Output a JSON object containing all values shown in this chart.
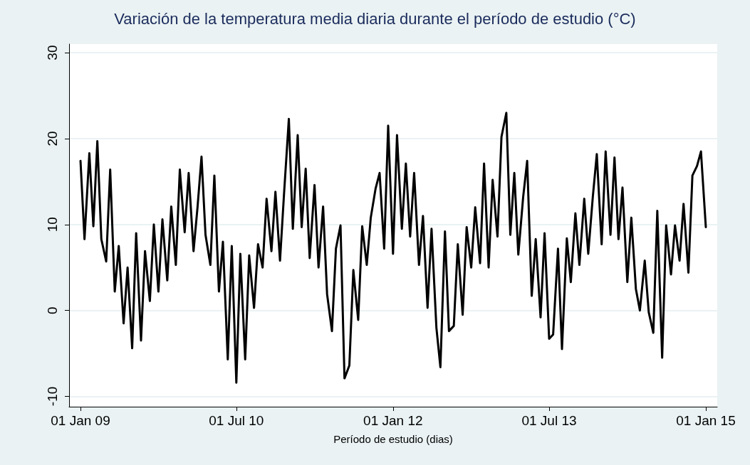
{
  "chart_data": {
    "type": "line",
    "title": "Variación de la temperatura media diaria durante el período de estudio (°C)",
    "xlabel": "Período de estudio (dias)",
    "x": [
      "2009-01-01",
      "2009-01-15",
      "2009-02-01",
      "2009-02-15",
      "2009-03-01",
      "2009-03-15",
      "2009-04-01",
      "2009-04-15",
      "2009-05-01",
      "2009-05-15",
      "2009-06-01",
      "2009-06-15",
      "2009-07-01",
      "2009-07-15",
      "2009-08-01",
      "2009-08-15",
      "2009-09-01",
      "2009-09-15",
      "2009-10-01",
      "2009-10-15",
      "2009-11-01",
      "2009-11-15",
      "2009-12-01",
      "2009-12-15",
      "2010-01-01",
      "2010-01-15",
      "2010-02-01",
      "2010-02-15",
      "2010-03-01",
      "2010-03-15",
      "2010-04-01",
      "2010-04-15",
      "2010-05-01",
      "2010-05-15",
      "2010-06-01",
      "2010-06-15",
      "2010-07-01",
      "2010-07-15",
      "2010-08-01",
      "2010-08-15",
      "2010-09-01",
      "2010-09-15",
      "2010-10-01",
      "2010-10-15",
      "2010-11-01",
      "2010-11-15",
      "2010-12-01",
      "2010-12-15",
      "2011-01-01",
      "2011-01-15",
      "2011-02-01",
      "2011-02-15",
      "2011-03-01",
      "2011-03-15",
      "2011-04-01",
      "2011-04-15",
      "2011-05-01",
      "2011-05-15",
      "2011-06-01",
      "2011-06-15",
      "2011-07-01",
      "2011-07-15",
      "2011-08-01",
      "2011-08-15",
      "2011-09-01",
      "2011-09-15",
      "2011-10-01",
      "2011-10-15",
      "2011-11-01",
      "2011-11-15",
      "2011-12-01",
      "2011-12-15",
      "2012-01-01",
      "2012-01-15",
      "2012-02-01",
      "2012-02-15",
      "2012-03-01",
      "2012-03-15",
      "2012-04-01",
      "2012-04-15",
      "2012-05-01",
      "2012-05-15",
      "2012-06-01",
      "2012-06-15",
      "2012-07-01",
      "2012-07-15",
      "2012-08-01",
      "2012-08-15",
      "2012-09-01",
      "2012-09-15",
      "2012-10-01",
      "2012-10-15",
      "2012-11-01",
      "2012-11-15",
      "2012-12-01",
      "2012-12-15",
      "2013-01-01",
      "2013-01-15",
      "2013-02-01",
      "2013-02-15",
      "2013-03-01",
      "2013-03-15",
      "2013-04-01",
      "2013-04-15",
      "2013-05-01",
      "2013-05-15",
      "2013-06-01",
      "2013-06-15",
      "2013-07-01",
      "2013-07-15",
      "2013-08-01",
      "2013-08-15",
      "2013-09-01",
      "2013-09-15",
      "2013-10-01",
      "2013-10-15",
      "2013-11-01",
      "2013-11-15",
      "2013-12-01",
      "2013-12-15",
      "2014-01-01",
      "2014-01-15",
      "2014-02-01",
      "2014-02-15",
      "2014-03-01",
      "2014-03-15",
      "2014-04-01",
      "2014-04-15",
      "2014-05-01",
      "2014-05-15",
      "2014-06-01",
      "2014-06-15",
      "2014-07-01",
      "2014-07-15",
      "2014-08-01",
      "2014-08-15",
      "2014-09-01",
      "2014-09-15",
      "2014-10-01",
      "2014-10-15",
      "2014-11-01",
      "2014-11-15",
      "2014-12-01",
      "2014-12-15",
      "2015-01-01"
    ],
    "series": [
      {
        "color": "#000000",
        "values": [
          17.4,
          8.3,
          18.3,
          9.8,
          19.7,
          8.3,
          5.7,
          16.4,
          2.2,
          7.5,
          -1.5,
          5.0,
          -4.4,
          9.0,
          -3.5,
          6.9,
          1.1,
          10,
          2.2,
          10.6,
          3.5,
          12.1,
          5.3,
          16.4,
          9.1,
          16,
          6.9,
          12,
          17.9,
          8.8,
          5.3,
          15.7,
          2.2,
          8,
          -5.7,
          7.5,
          -8.4,
          6.6,
          -5.7,
          6.4,
          0.3,
          7.7,
          5,
          13,
          6.9,
          13.8,
          5.8,
          13.5,
          22.3,
          9.5,
          20.4,
          9.7,
          16.5,
          6.1,
          14.6,
          5,
          12.1,
          1.9,
          -2.4,
          7.2,
          9.9,
          -7.9,
          -6.4,
          4.7,
          -1.1,
          9.8,
          5.3,
          10.8,
          14.2,
          16,
          7.2,
          21.5,
          6.6,
          20.4,
          9.5,
          17.1,
          8.6,
          16,
          5.3,
          11,
          0.3,
          9.5,
          -2,
          -6.6,
          9.2,
          -2.4,
          -1.8,
          7.7,
          -0.5,
          9.7,
          5,
          12,
          5.5,
          17.1,
          5,
          15.2,
          8.6,
          20.2,
          23,
          8.8,
          16,
          6.5,
          13.2,
          17.4,
          1.7,
          8.3,
          -0.8,
          9,
          -3.3,
          -2.8,
          7.2,
          -4.5,
          8.4,
          3.3,
          11.3,
          5.3,
          13,
          6.6,
          13.2,
          18.2,
          7.7,
          18.5,
          8.8,
          17.8,
          8.3,
          14.3,
          3.3,
          10.8,
          2.5,
          0,
          5.8,
          -0.2,
          -2.6,
          11.6,
          -5.5,
          9.9,
          4.2,
          9.9,
          5.8,
          12.4,
          4.4,
          15.7,
          16.8,
          18.5,
          9.7
        ]
      }
    ],
    "xlim": [
      "2008-11-22",
      "2015-02-10"
    ],
    "xticks": [
      {
        "value": "2009-01-01",
        "label": "01 Jan 09"
      },
      {
        "value": "2010-07-01",
        "label": "01 Jul 10"
      },
      {
        "value": "2012-01-01",
        "label": "01 Jan 12"
      },
      {
        "value": "2013-07-01",
        "label": "01 Jul 13"
      },
      {
        "value": "2015-01-01",
        "label": "01 Jan 15"
      }
    ],
    "ylim": [
      -11.2,
      31
    ],
    "yticks": [
      -10,
      0,
      10,
      20,
      30
    ],
    "grid": "y",
    "marker": "none",
    "line_style": "solid"
  }
}
